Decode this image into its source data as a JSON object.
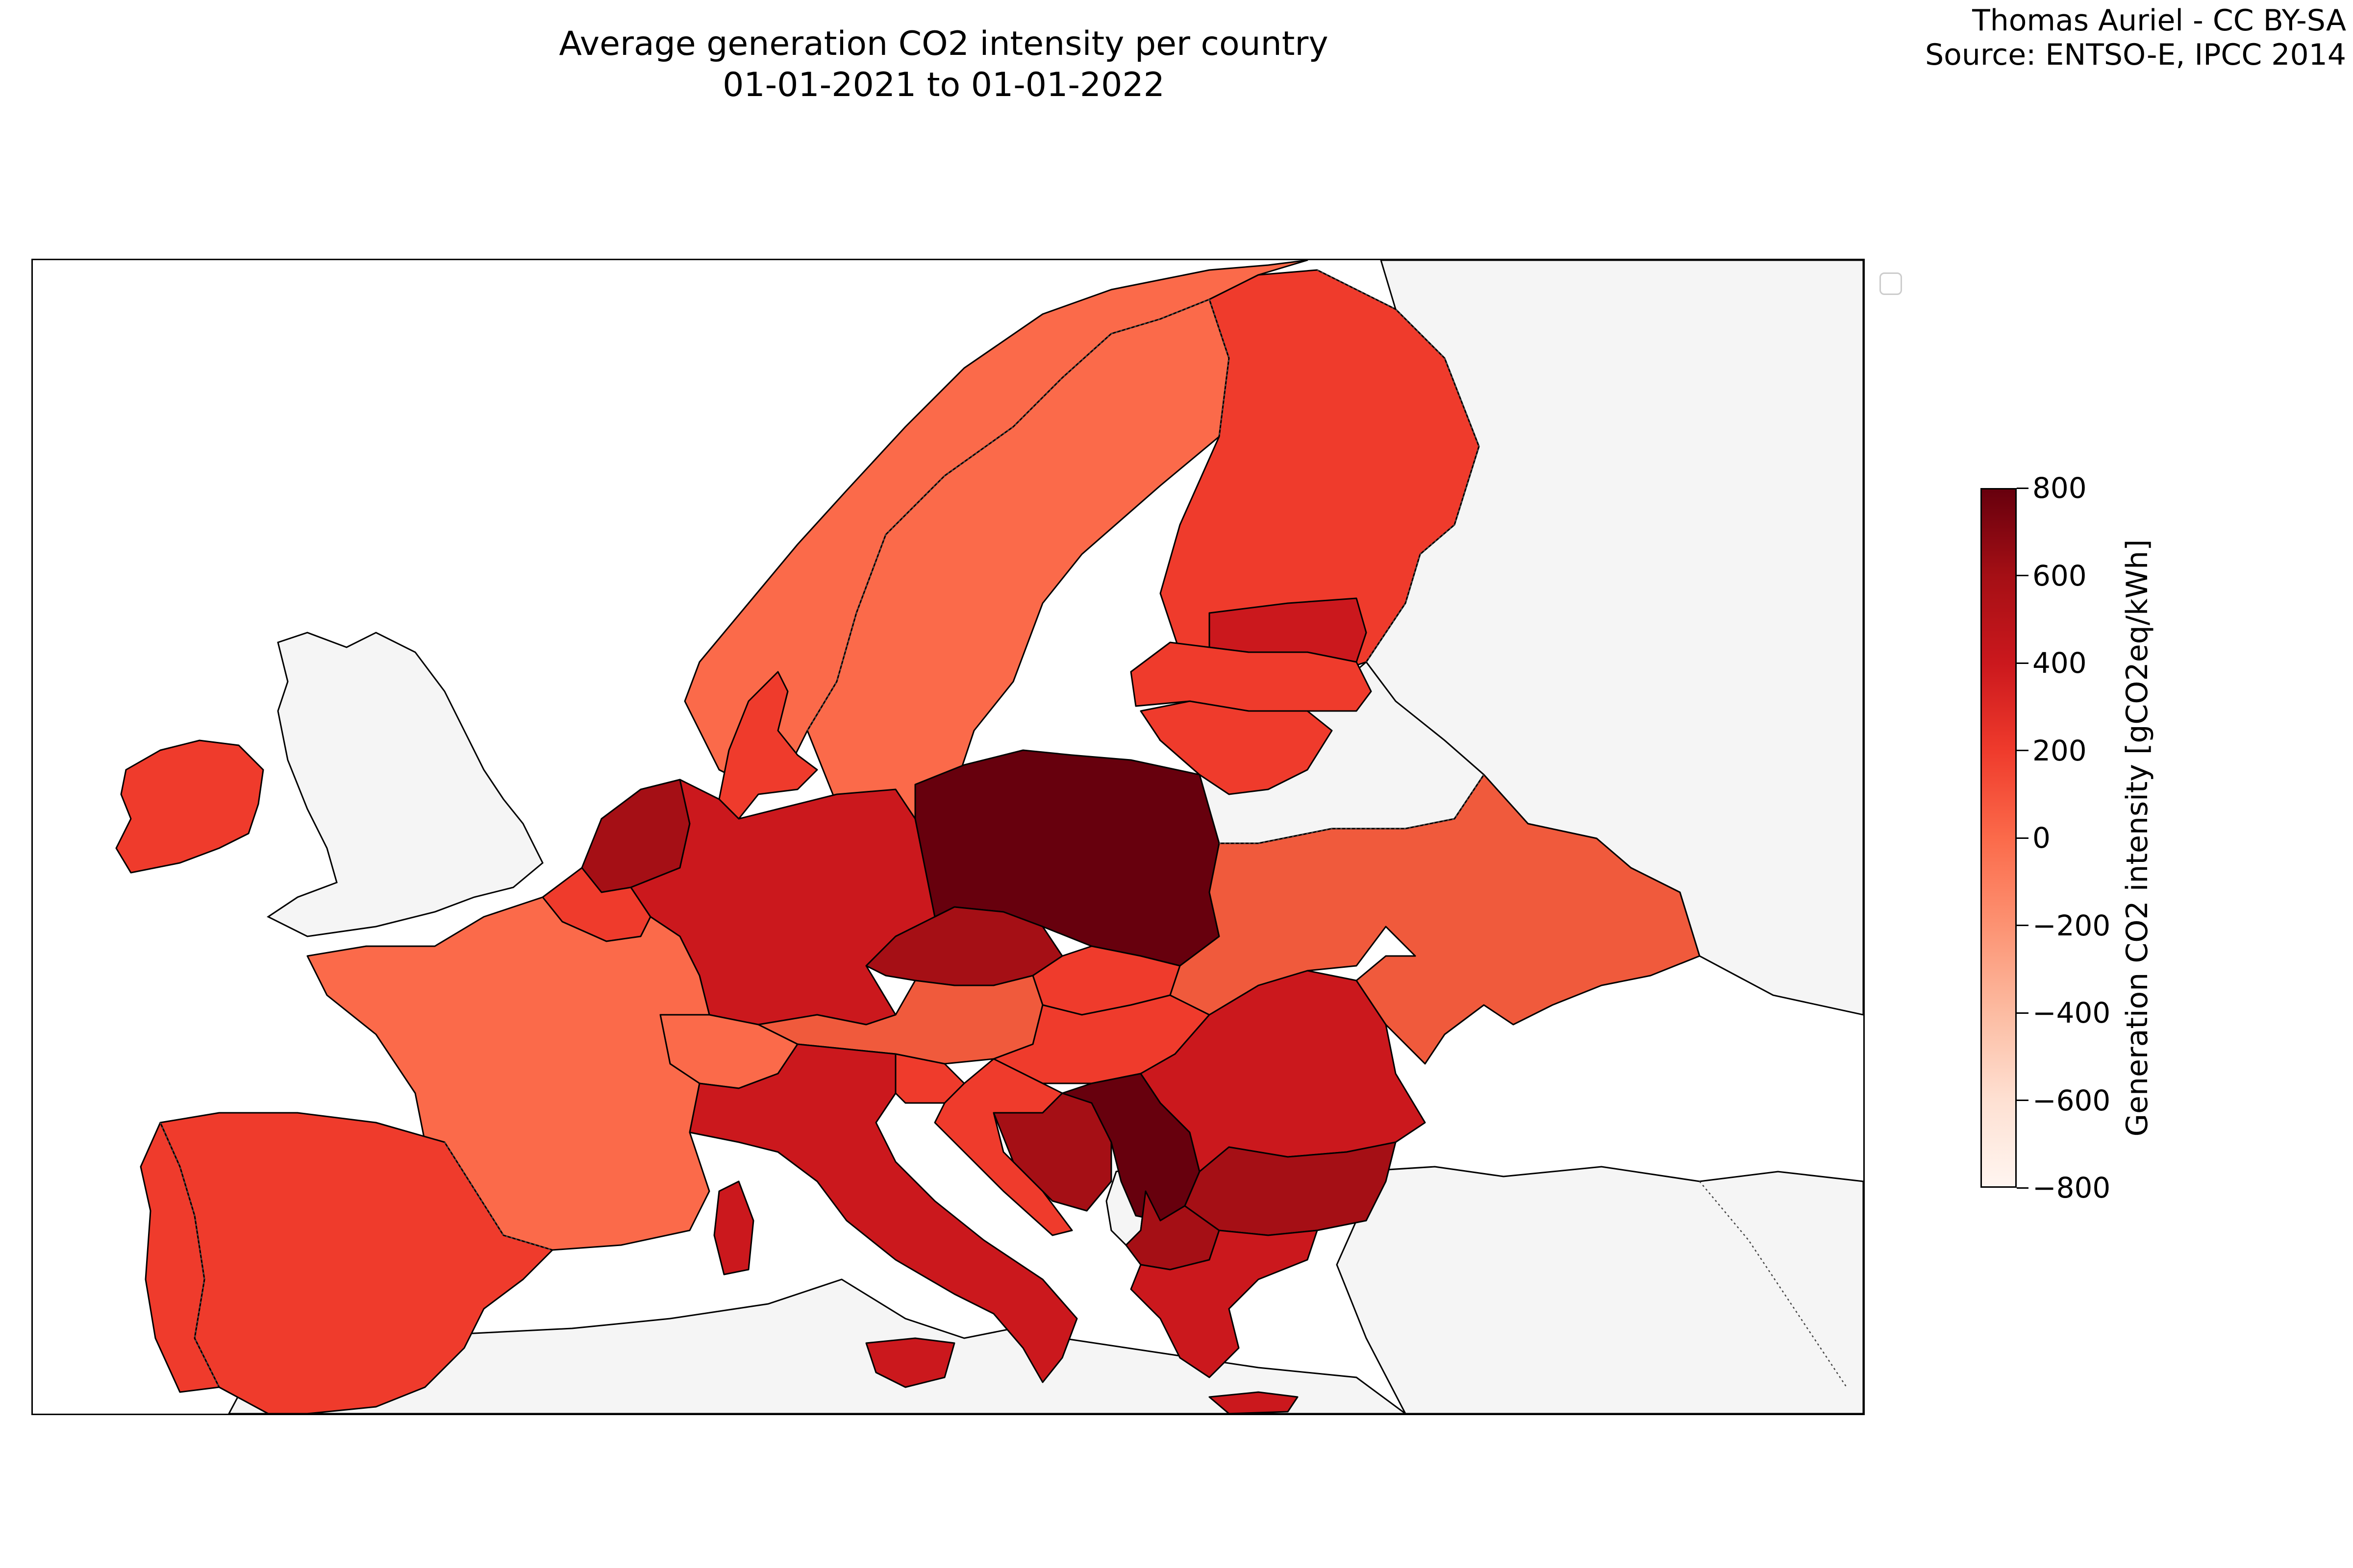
{
  "title": {
    "line1": "Average generation CO2 intensity per country",
    "line2": "01-01-2021 to 01-01-2022"
  },
  "credit": {
    "line1": "Thomas Auriel - CC BY-SA",
    "line2": "Source: ENTSO-E, IPCC 2014"
  },
  "colorbar": {
    "label": "Generation CO2 intensity [gCO2eq/kWh]",
    "min": -800,
    "max": 800,
    "ticks": [
      "800",
      "600",
      "400",
      "200",
      "0",
      "−200",
      "−400",
      "−600",
      "−800"
    ],
    "colormap": "Reds"
  },
  "colors": {
    "no_data_land": "#f5f5f5",
    "sea": "#ffffff",
    "level_very_high": "#67000d",
    "level_high": "#a50f15",
    "level_mid_high": "#cb181d",
    "level_mid": "#ef3b2c",
    "level_low_mid": "#f05a3c",
    "level_low": "#fb6a4a"
  },
  "chart_data": {
    "type": "choropleth",
    "regions": [
      {
        "region": "Poland",
        "level": "very high"
      },
      {
        "region": "Serbia",
        "level": "very high"
      },
      {
        "region": "Bosnia",
        "level": "high"
      },
      {
        "region": "Czechia",
        "level": "high"
      },
      {
        "region": "Bulgaria",
        "level": "high"
      },
      {
        "region": "Netherlands",
        "level": "high"
      },
      {
        "region": "North Macedonia",
        "level": "high"
      },
      {
        "region": "Germany",
        "level": "mid-high"
      },
      {
        "region": "Estonia",
        "level": "mid-high"
      },
      {
        "region": "Greece",
        "level": "mid-high"
      },
      {
        "region": "Romania",
        "level": "mid-high"
      },
      {
        "region": "Italy",
        "level": "mid-high"
      },
      {
        "region": "Ireland",
        "level": "mid"
      },
      {
        "region": "Denmark",
        "level": "mid"
      },
      {
        "region": "Spain",
        "level": "mid"
      },
      {
        "region": "Portugal",
        "level": "mid"
      },
      {
        "region": "Finland",
        "level": "mid"
      },
      {
        "region": "Latvia",
        "level": "mid"
      },
      {
        "region": "Lithuania",
        "level": "mid"
      },
      {
        "region": "Hungary",
        "level": "mid"
      },
      {
        "region": "Slovakia",
        "level": "mid"
      },
      {
        "region": "Croatia",
        "level": "mid"
      },
      {
        "region": "Slovenia",
        "level": "mid"
      },
      {
        "region": "Belgium",
        "level": "mid"
      },
      {
        "region": "Austria",
        "level": "low-mid"
      },
      {
        "region": "Ukraine",
        "level": "low-mid"
      },
      {
        "region": "France",
        "level": "low"
      },
      {
        "region": "Switzerland",
        "level": "low"
      },
      {
        "region": "Norway",
        "level": "low"
      },
      {
        "region": "Sweden",
        "level": "low"
      }
    ]
  }
}
